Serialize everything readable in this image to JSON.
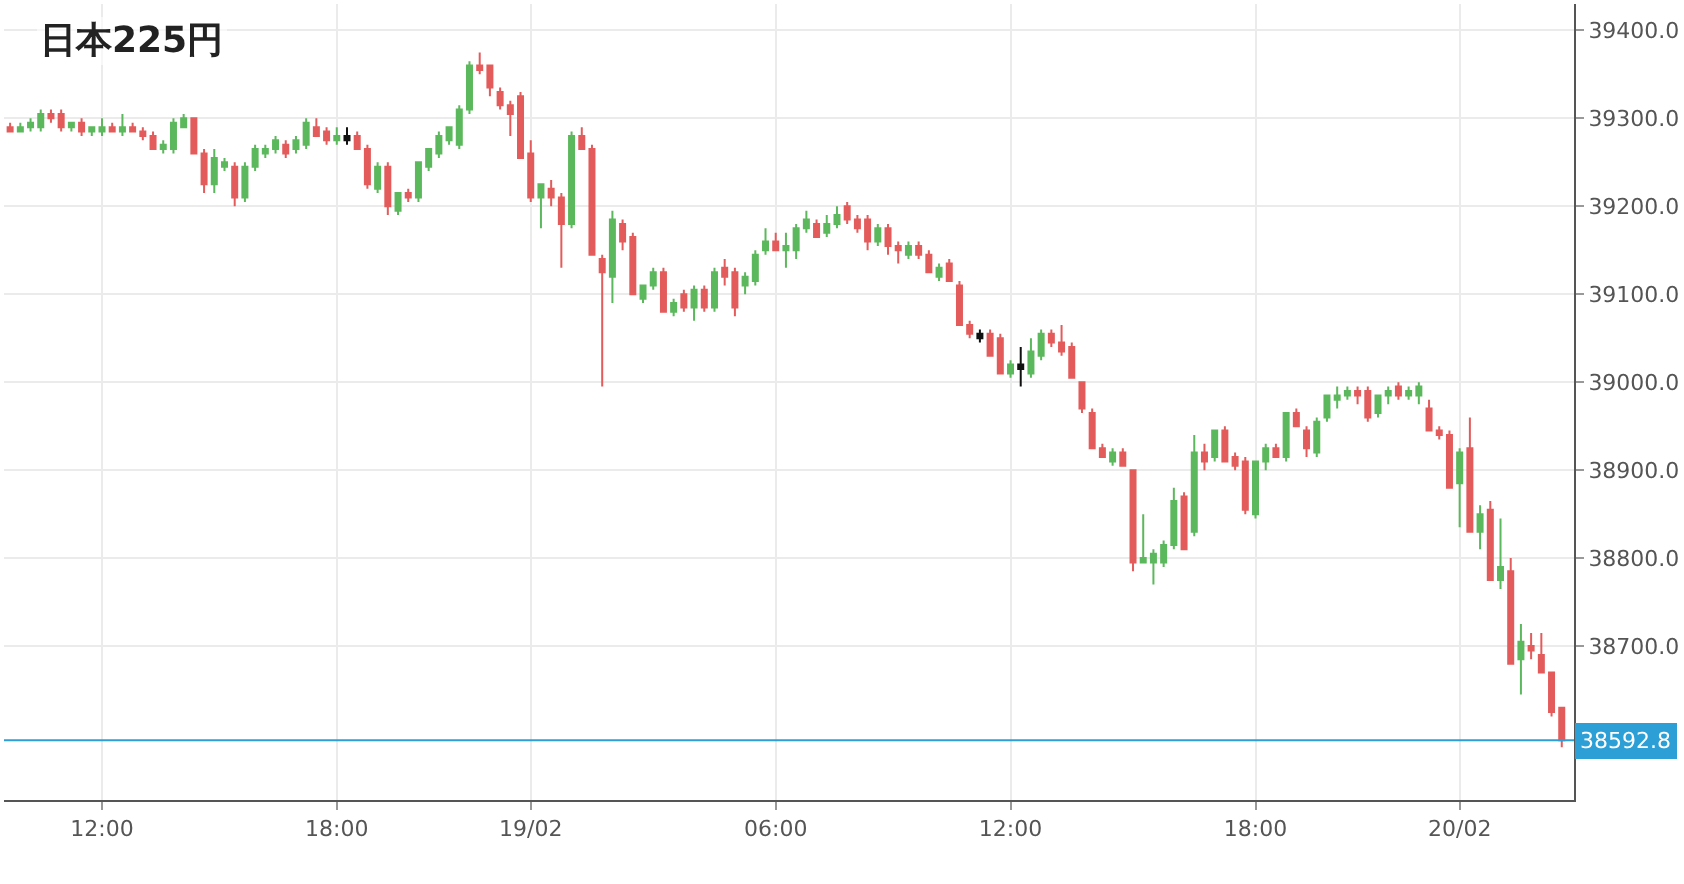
{
  "chart_data": {
    "type": "candlestick",
    "title": "日本225円",
    "categories": [
      null,
      null,
      null,
      null,
      null,
      null,
      null,
      null,
      null,
      "12:00",
      null,
      null,
      null,
      null,
      null,
      null,
      null,
      null,
      null,
      null,
      null,
      null,
      null,
      null,
      null,
      null,
      null,
      null,
      null,
      null,
      null,
      null,
      "18:00",
      null,
      null,
      null,
      null,
      null,
      null,
      null,
      null,
      null,
      null,
      null,
      null,
      null,
      null,
      null,
      null,
      null,
      null,
      "19/02",
      null,
      null,
      null,
      null,
      null,
      null,
      null,
      null,
      null,
      null,
      null,
      null,
      null,
      null,
      null,
      null,
      null,
      null,
      null,
      null,
      null,
      null,
      null,
      "06:00",
      null,
      null,
      null,
      null,
      null,
      null,
      null,
      null,
      null,
      null,
      null,
      null,
      null,
      null,
      null,
      null,
      null,
      null,
      null,
      null,
      null,
      null,
      "12:00",
      null,
      null,
      null,
      null,
      null,
      null,
      null,
      null,
      null,
      null,
      null,
      null,
      null,
      null,
      null,
      null,
      null,
      null,
      null,
      null,
      null,
      null,
      null,
      "18:00",
      null,
      null,
      null,
      null,
      null,
      null,
      null,
      null,
      null,
      null,
      null,
      null,
      null,
      null,
      null,
      null,
      null,
      null,
      null,
      "20/02",
      null,
      null,
      null,
      null,
      null,
      null,
      null,
      null,
      null,
      null
    ],
    "ohlc": [
      [
        39290,
        39295,
        39285,
        39285
      ],
      [
        39285,
        39295,
        39285,
        39290
      ],
      [
        39290,
        39300,
        39285,
        39295
      ],
      [
        39290,
        39310,
        39285,
        39305
      ],
      [
        39305,
        39310,
        39295,
        39300
      ],
      [
        39305,
        39310,
        39285,
        39290
      ],
      [
        39290,
        39295,
        39285,
        39295
      ],
      [
        39295,
        39300,
        39280,
        39285
      ],
      [
        39285,
        39290,
        39280,
        39290
      ],
      [
        39285,
        39300,
        39280,
        39290
      ],
      [
        39290,
        39295,
        39285,
        39285
      ],
      [
        39285,
        39305,
        39280,
        39290
      ],
      [
        39290,
        39295,
        39285,
        39285
      ],
      [
        39285,
        39290,
        39275,
        39280
      ],
      [
        39280,
        39285,
        39265,
        39265
      ],
      [
        39265,
        39275,
        39260,
        39270
      ],
      [
        39265,
        39300,
        39260,
        39295
      ],
      [
        39290,
        39305,
        39290,
        39300
      ],
      [
        39300,
        39300,
        39260,
        39260
      ],
      [
        39260,
        39265,
        39215,
        39225
      ],
      [
        39225,
        39265,
        39215,
        39255
      ],
      [
        39245,
        39255,
        39240,
        39250
      ],
      [
        39245,
        39250,
        39200,
        39210
      ],
      [
        39210,
        39250,
        39205,
        39245
      ],
      [
        39245,
        39270,
        39240,
        39265
      ],
      [
        39260,
        39270,
        39255,
        39265
      ],
      [
        39265,
        39280,
        39260,
        39275
      ],
      [
        39270,
        39275,
        39255,
        39260
      ],
      [
        39265,
        39280,
        39260,
        39275
      ],
      [
        39270,
        39300,
        39265,
        39295
      ],
      [
        39290,
        39300,
        39280,
        39280
      ],
      [
        39285,
        39290,
        39270,
        39275
      ],
      [
        39275,
        39290,
        39270,
        39280
      ],
      [
        39280,
        39290,
        39270,
        39275
      ],
      [
        39280,
        39285,
        39265,
        39265
      ],
      [
        39265,
        39270,
        39220,
        39225
      ],
      [
        39220,
        39250,
        39215,
        39245
      ],
      [
        39245,
        39250,
        39190,
        39200
      ],
      [
        39195,
        39215,
        39190,
        39215
      ],
      [
        39215,
        39220,
        39205,
        39210
      ],
      [
        39210,
        39250,
        39205,
        39250
      ],
      [
        39245,
        39265,
        39240,
        39265
      ],
      [
        39260,
        39285,
        39255,
        39280
      ],
      [
        39275,
        39290,
        39270,
        39290
      ],
      [
        39270,
        39315,
        39265,
        39310
      ],
      [
        39310,
        39365,
        39305,
        39360
      ],
      [
        39360,
        39375,
        39350,
        39355
      ],
      [
        39360,
        39360,
        39325,
        39335
      ],
      [
        39330,
        39335,
        39310,
        39315
      ],
      [
        39315,
        39320,
        39280,
        39305
      ],
      [
        39325,
        39330,
        39255,
        39255
      ],
      [
        39260,
        39275,
        39205,
        39210
      ],
      [
        39210,
        39225,
        39175,
        39225
      ],
      [
        39220,
        39230,
        39200,
        39210
      ],
      [
        39210,
        39215,
        39130,
        39180
      ],
      [
        39180,
        39285,
        39175,
        39280
      ],
      [
        39280,
        39290,
        39265,
        39265
      ],
      [
        39265,
        39270,
        39145,
        39145
      ],
      [
        39140,
        39145,
        38995,
        39125
      ],
      [
        39120,
        39195,
        39090,
        39185
      ],
      [
        39180,
        39185,
        39150,
        39160
      ],
      [
        39165,
        39170,
        39100,
        39100
      ],
      [
        39095,
        39110,
        39090,
        39110
      ],
      [
        39110,
        39130,
        39105,
        39125
      ],
      [
        39125,
        39130,
        39080,
        39080
      ],
      [
        39080,
        39095,
        39075,
        39090
      ],
      [
        39100,
        39105,
        39080,
        39085
      ],
      [
        39085,
        39110,
        39070,
        39105
      ],
      [
        39105,
        39110,
        39080,
        39085
      ],
      [
        39085,
        39130,
        39080,
        39125
      ],
      [
        39130,
        39140,
        39110,
        39120
      ],
      [
        39125,
        39130,
        39075,
        39085
      ],
      [
        39110,
        39125,
        39100,
        39120
      ],
      [
        39115,
        39150,
        39110,
        39145
      ],
      [
        39150,
        39175,
        39145,
        39160
      ],
      [
        39160,
        39170,
        39150,
        39150
      ],
      [
        39150,
        39170,
        39130,
        39155
      ],
      [
        39150,
        39180,
        39140,
        39175
      ],
      [
        39175,
        39195,
        39170,
        39185
      ],
      [
        39180,
        39185,
        39165,
        39165
      ],
      [
        39170,
        39190,
        39165,
        39180
      ],
      [
        39180,
        39200,
        39175,
        39190
      ],
      [
        39200,
        39205,
        39180,
        39185
      ],
      [
        39185,
        39190,
        39170,
        39175
      ],
      [
        39185,
        39190,
        39150,
        39160
      ],
      [
        39160,
        39180,
        39155,
        39175
      ],
      [
        39175,
        39180,
        39145,
        39155
      ],
      [
        39155,
        39160,
        39135,
        39150
      ],
      [
        39145,
        39160,
        39140,
        39155
      ],
      [
        39155,
        39160,
        39140,
        39145
      ],
      [
        39145,
        39150,
        39125,
        39125
      ],
      [
        39120,
        39135,
        39115,
        39130
      ],
      [
        39135,
        39140,
        39115,
        39115
      ],
      [
        39110,
        39115,
        39065,
        39065
      ],
      [
        39065,
        39070,
        39050,
        39055
      ],
      [
        39055,
        39060,
        39045,
        39050
      ],
      [
        39055,
        39060,
        39030,
        39030
      ],
      [
        39050,
        39055,
        39010,
        39010
      ],
      [
        39010,
        39025,
        39005,
        39020
      ],
      [
        39020,
        39040,
        38995,
        39015
      ],
      [
        39010,
        39050,
        39005,
        39035
      ],
      [
        39030,
        39060,
        39025,
        39055
      ],
      [
        39055,
        39060,
        39040,
        39045
      ],
      [
        39045,
        39065,
        39030,
        39035
      ],
      [
        39040,
        39045,
        39005,
        39005
      ],
      [
        39000,
        39000,
        38965,
        38970
      ],
      [
        38965,
        38970,
        38925,
        38925
      ],
      [
        38925,
        38930,
        38915,
        38915
      ],
      [
        38910,
        38925,
        38905,
        38920
      ],
      [
        38920,
        38925,
        38905,
        38905
      ],
      [
        38900,
        38900,
        38785,
        38795
      ],
      [
        38795,
        38850,
        38795,
        38800
      ],
      [
        38795,
        38810,
        38770,
        38805
      ],
      [
        38795,
        38820,
        38790,
        38815
      ],
      [
        38815,
        38880,
        38810,
        38865
      ],
      [
        38870,
        38875,
        38810,
        38810
      ],
      [
        38830,
        38940,
        38825,
        38920
      ],
      [
        38920,
        38930,
        38900,
        38910
      ],
      [
        38915,
        38945,
        38910,
        38945
      ],
      [
        38945,
        38950,
        38910,
        38910
      ],
      [
        38915,
        38920,
        38900,
        38905
      ],
      [
        38910,
        38915,
        38850,
        38855
      ],
      [
        38850,
        38910,
        38845,
        38910
      ],
      [
        38910,
        38930,
        38900,
        38925
      ],
      [
        38925,
        38930,
        38915,
        38915
      ],
      [
        38915,
        38965,
        38910,
        38965
      ],
      [
        38965,
        38970,
        38950,
        38950
      ],
      [
        38945,
        38950,
        38915,
        38925
      ],
      [
        38920,
        38960,
        38915,
        38955
      ],
      [
        38960,
        38985,
        38955,
        38985
      ],
      [
        38980,
        38995,
        38970,
        38985
      ],
      [
        38985,
        38995,
        38980,
        38990
      ],
      [
        38990,
        38995,
        38975,
        38985
      ],
      [
        38990,
        38995,
        38955,
        38960
      ],
      [
        38965,
        38985,
        38960,
        38985
      ],
      [
        38985,
        38995,
        38975,
        38990
      ],
      [
        38995,
        39000,
        38980,
        38985
      ],
      [
        38985,
        38995,
        38980,
        38990
      ],
      [
        38985,
        39000,
        38975,
        38995
      ],
      [
        38970,
        38980,
        38945,
        38945
      ],
      [
        38945,
        38950,
        38935,
        38940
      ],
      [
        38940,
        38945,
        38880,
        38880
      ],
      [
        38885,
        38925,
        38835,
        38920
      ],
      [
        38925,
        38960,
        38830,
        38830
      ],
      [
        38830,
        38860,
        38810,
        38850
      ],
      [
        38855,
        38865,
        38775,
        38775
      ],
      [
        38775,
        38845,
        38765,
        38790
      ],
      [
        38785,
        38800,
        38680,
        38680
      ],
      [
        38685,
        38725,
        38645,
        38705
      ],
      [
        38700,
        38715,
        38685,
        38695
      ],
      [
        38690,
        38715,
        38670,
        38670
      ],
      [
        38670,
        38670,
        38620,
        38625
      ],
      [
        38630,
        38630,
        38585,
        38592.8
      ]
    ],
    "colors": [
      "#e35b5b",
      "#5cb85c",
      "#5cb85c",
      "#5cb85c",
      "#e35b5b",
      "#e35b5b",
      "#5cb85c",
      "#e35b5b",
      "#5cb85c",
      "#5cb85c",
      "#e35b5b",
      "#5cb85c",
      "#e35b5b",
      "#e35b5b",
      "#e35b5b",
      "#5cb85c",
      "#5cb85c",
      "#5cb85c",
      "#e35b5b",
      "#e35b5b",
      "#5cb85c",
      "#5cb85c",
      "#e35b5b",
      "#5cb85c",
      "#5cb85c",
      "#5cb85c",
      "#5cb85c",
      "#e35b5b",
      "#5cb85c",
      "#5cb85c",
      "#e35b5b",
      "#e35b5b",
      "#5cb85c",
      "#111111",
      "#e35b5b",
      "#e35b5b",
      "#5cb85c",
      "#e35b5b",
      "#5cb85c",
      "#e35b5b",
      "#5cb85c",
      "#5cb85c",
      "#5cb85c",
      "#5cb85c",
      "#5cb85c",
      "#5cb85c",
      "#e35b5b",
      "#e35b5b",
      "#e35b5b",
      "#e35b5b",
      "#e35b5b",
      "#e35b5b",
      "#5cb85c",
      "#e35b5b",
      "#e35b5b",
      "#5cb85c",
      "#e35b5b",
      "#e35b5b",
      "#e35b5b",
      "#5cb85c",
      "#e35b5b",
      "#e35b5b",
      "#5cb85c",
      "#5cb85c",
      "#e35b5b",
      "#5cb85c",
      "#e35b5b",
      "#5cb85c",
      "#e35b5b",
      "#5cb85c",
      "#e35b5b",
      "#e35b5b",
      "#5cb85c",
      "#5cb85c",
      "#5cb85c",
      "#e35b5b",
      "#5cb85c",
      "#5cb85c",
      "#5cb85c",
      "#e35b5b",
      "#5cb85c",
      "#5cb85c",
      "#e35b5b",
      "#e35b5b",
      "#e35b5b",
      "#5cb85c",
      "#e35b5b",
      "#e35b5b",
      "#5cb85c",
      "#e35b5b",
      "#e35b5b",
      "#5cb85c",
      "#e35b5b",
      "#e35b5b",
      "#e35b5b",
      "#111111",
      "#e35b5b",
      "#e35b5b",
      "#5cb85c",
      "#111111",
      "#5cb85c",
      "#5cb85c",
      "#e35b5b",
      "#e35b5b",
      "#e35b5b",
      "#e35b5b",
      "#e35b5b",
      "#e35b5b",
      "#5cb85c",
      "#e35b5b",
      "#e35b5b",
      "#5cb85c",
      "#5cb85c",
      "#5cb85c",
      "#5cb85c",
      "#e35b5b",
      "#5cb85c",
      "#e35b5b",
      "#5cb85c",
      "#e35b5b",
      "#e35b5b",
      "#e35b5b",
      "#5cb85c",
      "#5cb85c",
      "#e35b5b",
      "#5cb85c",
      "#e35b5b",
      "#e35b5b",
      "#5cb85c",
      "#5cb85c",
      "#5cb85c",
      "#5cb85c",
      "#e35b5b",
      "#e35b5b",
      "#5cb85c",
      "#5cb85c",
      "#e35b5b",
      "#5cb85c",
      "#5cb85c",
      "#e35b5b",
      "#e35b5b",
      "#e35b5b",
      "#5cb85c",
      "#e35b5b",
      "#5cb85c",
      "#e35b5b",
      "#5cb85c",
      "#e35b5b",
      "#5cb85c",
      "#e35b5b",
      "#e35b5b",
      "#e35b5b",
      "#e35b5b"
    ],
    "ylim": [
      38525,
      39430
    ],
    "yticks": [
      {
        "value": 38700,
        "label": "38700.0"
      },
      {
        "value": 38800,
        "label": "38800.0"
      },
      {
        "value": 38900,
        "label": "38900.0"
      },
      {
        "value": 39000,
        "label": "39000.0"
      },
      {
        "value": 39100,
        "label": "39100.0"
      },
      {
        "value": 39200,
        "label": "39200.0"
      },
      {
        "value": 39300,
        "label": "39300.0"
      },
      {
        "value": 39400,
        "label": "39400.0"
      }
    ],
    "ref_lines": [
      {
        "axis": "y",
        "value": 38592.8,
        "label": "38592.8",
        "color": "#2b9fd6"
      }
    ],
    "grid": true,
    "legend": false
  }
}
